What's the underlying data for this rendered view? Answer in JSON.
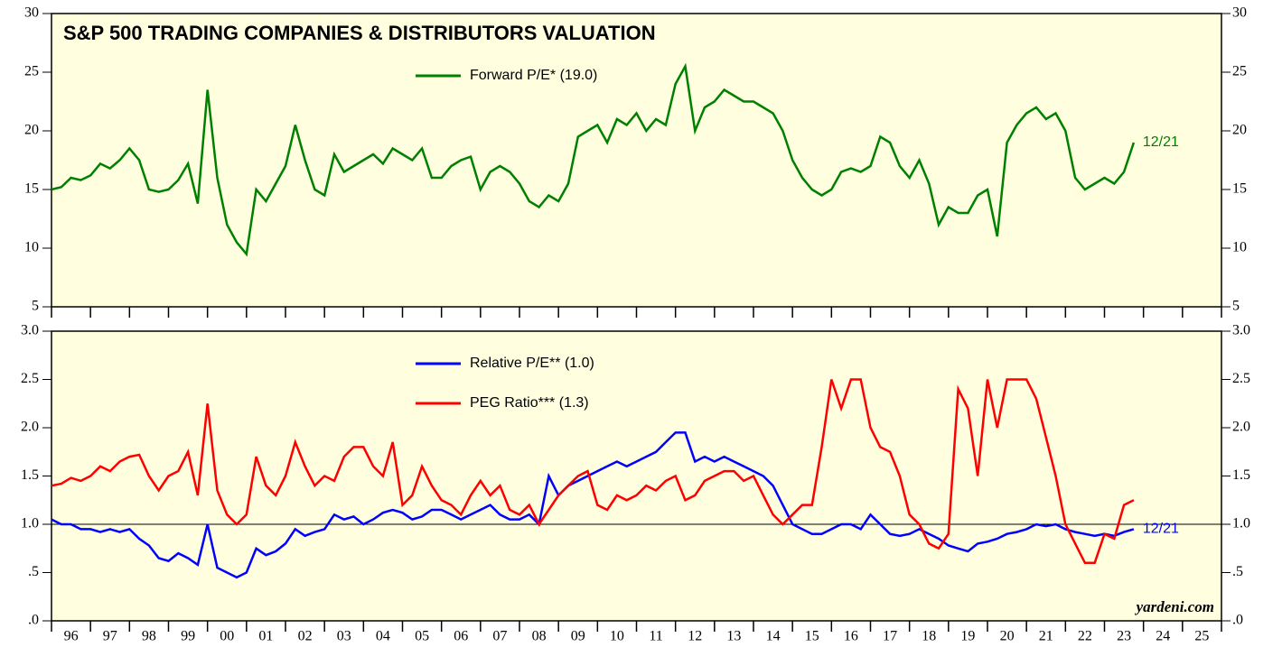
{
  "chart_data": [
    {
      "type": "line",
      "title": "S&P 500 TRADING COMPANIES & DISTRIBUTORS VALUATION",
      "x": [
        1996,
        1996.25,
        1996.5,
        1996.75,
        1997,
        1997.25,
        1997.5,
        1997.75,
        1998,
        1998.25,
        1998.5,
        1998.75,
        1999,
        1999.25,
        1999.5,
        1999.75,
        2000,
        2000.25,
        2000.5,
        2000.75,
        2001,
        2001.25,
        2001.5,
        2001.75,
        2002,
        2002.25,
        2002.5,
        2002.75,
        2003,
        2003.25,
        2003.5,
        2003.75,
        2004,
        2004.25,
        2004.5,
        2004.75,
        2005,
        2005.25,
        2005.5,
        2005.75,
        2006,
        2006.25,
        2006.5,
        2006.75,
        2007,
        2007.25,
        2007.5,
        2007.75,
        2008,
        2008.25,
        2008.5,
        2008.75,
        2009,
        2009.25,
        2009.5,
        2009.75,
        2010,
        2010.25,
        2010.5,
        2010.75,
        2011,
        2011.25,
        2011.5,
        2011.75,
        2012,
        2012.25,
        2012.5,
        2012.75,
        2013,
        2013.25,
        2013.5,
        2013.75,
        2014,
        2014.25,
        2014.5,
        2014.75,
        2015,
        2015.25,
        2015.5,
        2015.75,
        2016,
        2016.25,
        2016.5,
        2016.75,
        2017,
        2017.25,
        2017.5,
        2017.75,
        2018,
        2018.25,
        2018.5,
        2018.75,
        2019,
        2019.25,
        2019.5,
        2019.75,
        2020,
        2020.25,
        2020.5,
        2020.75,
        2021,
        2021.25,
        2021.5,
        2021.75,
        2022,
        2022.25,
        2022.5,
        2022.75,
        2023,
        2023.25,
        2023.5,
        2023.75
      ],
      "series": [
        {
          "name": "Forward P/E* (19.0)",
          "color": "#008000",
          "end_label": "12/21",
          "values": [
            15.0,
            15.2,
            16.0,
            15.8,
            16.2,
            17.2,
            16.8,
            17.5,
            18.5,
            17.5,
            15.0,
            14.8,
            15.0,
            15.8,
            17.2,
            13.8,
            23.5,
            16.0,
            12.0,
            10.5,
            9.5,
            15.0,
            14.0,
            15.5,
            17.0,
            20.5,
            17.5,
            15.0,
            14.5,
            18.0,
            16.5,
            17.0,
            17.5,
            18.0,
            17.2,
            18.5,
            18.0,
            17.5,
            18.5,
            16.0,
            16.0,
            17.0,
            17.5,
            17.8,
            15.0,
            16.5,
            17.0,
            16.5,
            15.5,
            14.0,
            13.5,
            14.5,
            14.0,
            15.5,
            19.5,
            20.0,
            20.5,
            19.0,
            21.0,
            20.5,
            21.5,
            20.0,
            21.0,
            20.5,
            24.0,
            25.5,
            20.0,
            22.0,
            22.5,
            23.5,
            23.0,
            22.5,
            22.5,
            22.0,
            21.5,
            20.0,
            17.5,
            16.0,
            15.0,
            14.5,
            15.0,
            16.5,
            16.8,
            16.5,
            17.0,
            19.5,
            19.0,
            17.0,
            16.0,
            17.5,
            15.5,
            12.0,
            13.5,
            13.0,
            13.0,
            14.5,
            15.0,
            11.0,
            19.0,
            20.5,
            21.5,
            22.0,
            21.0,
            21.5,
            20.0,
            16.0,
            15.0,
            15.5,
            16.0,
            15.5,
            16.5,
            19.0
          ]
        }
      ],
      "ylim": [
        5,
        30
      ],
      "yticks": [
        5,
        10,
        15,
        20,
        25,
        30
      ],
      "xlim": [
        1996,
        2026
      ],
      "xticks": [
        1996,
        1997,
        1998,
        1999,
        2000,
        2001,
        2002,
        2003,
        2004,
        2005,
        2006,
        2007,
        2008,
        2009,
        2010,
        2011,
        2012,
        2013,
        2014,
        2015,
        2016,
        2017,
        2018,
        2019,
        2020,
        2021,
        2022,
        2023,
        2024,
        2025,
        2026
      ]
    },
    {
      "type": "line",
      "x": [
        1996,
        1996.25,
        1996.5,
        1996.75,
        1997,
        1997.25,
        1997.5,
        1997.75,
        1998,
        1998.25,
        1998.5,
        1998.75,
        1999,
        1999.25,
        1999.5,
        1999.75,
        2000,
        2000.25,
        2000.5,
        2000.75,
        2001,
        2001.25,
        2001.5,
        2001.75,
        2002,
        2002.25,
        2002.5,
        2002.75,
        2003,
        2003.25,
        2003.5,
        2003.75,
        2004,
        2004.25,
        2004.5,
        2004.75,
        2005,
        2005.25,
        2005.5,
        2005.75,
        2006,
        2006.25,
        2006.5,
        2006.75,
        2007,
        2007.25,
        2007.5,
        2007.75,
        2008,
        2008.25,
        2008.5,
        2008.75,
        2009,
        2009.25,
        2009.5,
        2009.75,
        2010,
        2010.25,
        2010.5,
        2010.75,
        2011,
        2011.25,
        2011.5,
        2011.75,
        2012,
        2012.25,
        2012.5,
        2012.75,
        2013,
        2013.25,
        2013.5,
        2013.75,
        2014,
        2014.25,
        2014.5,
        2014.75,
        2015,
        2015.25,
        2015.5,
        2015.75,
        2016,
        2016.25,
        2016.5,
        2016.75,
        2017,
        2017.25,
        2017.5,
        2017.75,
        2018,
        2018.25,
        2018.5,
        2018.75,
        2019,
        2019.25,
        2019.5,
        2019.75,
        2020,
        2020.25,
        2020.5,
        2020.75,
        2021,
        2021.25,
        2021.5,
        2021.75,
        2022,
        2022.25,
        2022.5,
        2022.75,
        2023,
        2023.25,
        2023.5,
        2023.75
      ],
      "series": [
        {
          "name": "Relative P/E** (1.0)",
          "color": "#0000ff",
          "end_label": "12/21",
          "values": [
            1.05,
            1.0,
            1.0,
            0.95,
            0.95,
            0.92,
            0.95,
            0.92,
            0.95,
            0.85,
            0.78,
            0.65,
            0.62,
            0.7,
            0.65,
            0.58,
            1.0,
            0.55,
            0.5,
            0.45,
            0.5,
            0.75,
            0.68,
            0.72,
            0.8,
            0.95,
            0.88,
            0.92,
            0.95,
            1.1,
            1.05,
            1.08,
            1.0,
            1.05,
            1.12,
            1.15,
            1.12,
            1.05,
            1.08,
            1.15,
            1.15,
            1.1,
            1.05,
            1.1,
            1.15,
            1.2,
            1.1,
            1.05,
            1.05,
            1.1,
            1.0,
            1.5,
            1.3,
            1.4,
            1.45,
            1.5,
            1.55,
            1.6,
            1.65,
            1.6,
            1.65,
            1.7,
            1.75,
            1.85,
            1.95,
            1.95,
            1.65,
            1.7,
            1.65,
            1.7,
            1.65,
            1.6,
            1.55,
            1.5,
            1.4,
            1.2,
            1.0,
            0.95,
            0.9,
            0.9,
            0.95,
            1.0,
            1.0,
            0.95,
            1.1,
            1.0,
            0.9,
            0.88,
            0.9,
            0.95,
            0.9,
            0.85,
            0.78,
            0.75,
            0.72,
            0.8,
            0.82,
            0.85,
            0.9,
            0.92,
            0.95,
            1.0,
            0.98,
            1.0,
            0.95,
            0.92,
            0.9,
            0.88,
            0.9,
            0.88,
            0.92,
            0.95
          ]
        },
        {
          "name": "PEG Ratio*** (1.3)",
          "color": "#ff0000",
          "values": [
            1.4,
            1.42,
            1.48,
            1.45,
            1.5,
            1.6,
            1.55,
            1.65,
            1.7,
            1.72,
            1.5,
            1.35,
            1.5,
            1.55,
            1.75,
            1.3,
            2.25,
            1.35,
            1.1,
            1.0,
            1.1,
            1.7,
            1.4,
            1.3,
            1.5,
            1.85,
            1.6,
            1.4,
            1.5,
            1.45,
            1.7,
            1.8,
            1.8,
            1.6,
            1.5,
            1.85,
            1.2,
            1.3,
            1.6,
            1.4,
            1.25,
            1.2,
            1.1,
            1.3,
            1.45,
            1.3,
            1.4,
            1.15,
            1.1,
            1.2,
            1.0,
            1.15,
            1.3,
            1.4,
            1.5,
            1.55,
            1.2,
            1.15,
            1.3,
            1.25,
            1.3,
            1.4,
            1.35,
            1.45,
            1.5,
            1.25,
            1.3,
            1.45,
            1.5,
            1.55,
            1.55,
            1.45,
            1.5,
            1.3,
            1.1,
            1.0,
            1.1,
            1.2,
            1.2,
            1.8,
            2.5,
            2.2,
            2.5,
            2.5,
            2.0,
            1.8,
            1.75,
            1.5,
            1.1,
            1.0,
            0.8,
            0.75,
            0.9,
            2.4,
            2.2,
            1.5,
            2.5,
            2.0,
            2.5,
            2.5,
            2.5,
            2.3,
            1.9,
            1.5,
            1.0,
            0.8,
            0.6,
            0.6,
            0.9,
            0.85,
            1.2,
            1.25
          ]
        }
      ],
      "ylim": [
        0,
        3
      ],
      "yticks": [
        {
          "value": 0,
          "label": ".0"
        },
        {
          "value": 0.5,
          "label": ".5"
        },
        {
          "value": 1,
          "label": "1.0"
        },
        {
          "value": 1.5,
          "label": "1.5"
        },
        {
          "value": 2,
          "label": "2.0"
        },
        {
          "value": 2.5,
          "label": "2.5"
        },
        {
          "value": 3,
          "label": "3.0"
        }
      ],
      "hline": 1,
      "xlim": [
        1996,
        2026
      ],
      "xticks": [
        1996,
        1997,
        1998,
        1999,
        2000,
        2001,
        2002,
        2003,
        2004,
        2005,
        2006,
        2007,
        2008,
        2009,
        2010,
        2011,
        2012,
        2013,
        2014,
        2015,
        2016,
        2017,
        2018,
        2019,
        2020,
        2021,
        2022,
        2023,
        2024,
        2025,
        2026
      ],
      "xlabels": [
        {
          "value": 1996.5,
          "label": "96"
        },
        {
          "value": 1997.5,
          "label": "97"
        },
        {
          "value": 1998.5,
          "label": "98"
        },
        {
          "value": 1999.5,
          "label": "99"
        },
        {
          "value": 2000.5,
          "label": "00"
        },
        {
          "value": 2001.5,
          "label": "01"
        },
        {
          "value": 2002.5,
          "label": "02"
        },
        {
          "value": 2003.5,
          "label": "03"
        },
        {
          "value": 2004.5,
          "label": "04"
        },
        {
          "value": 2005.5,
          "label": "05"
        },
        {
          "value": 2006.5,
          "label": "06"
        },
        {
          "value": 2007.5,
          "label": "07"
        },
        {
          "value": 2008.5,
          "label": "08"
        },
        {
          "value": 2009.5,
          "label": "09"
        },
        {
          "value": 2010.5,
          "label": "10"
        },
        {
          "value": 2011.5,
          "label": "11"
        },
        {
          "value": 2012.5,
          "label": "12"
        },
        {
          "value": 2013.5,
          "label": "13"
        },
        {
          "value": 2014.5,
          "label": "14"
        },
        {
          "value": 2015.5,
          "label": "15"
        },
        {
          "value": 2016.5,
          "label": "16"
        },
        {
          "value": 2017.5,
          "label": "17"
        },
        {
          "value": 2018.5,
          "label": "18"
        },
        {
          "value": 2019.5,
          "label": "19"
        },
        {
          "value": 2020.5,
          "label": "20"
        },
        {
          "value": 2021.5,
          "label": "21"
        },
        {
          "value": 2022.5,
          "label": "22"
        },
        {
          "value": 2023.5,
          "label": "23"
        },
        {
          "value": 2024.5,
          "label": "24"
        },
        {
          "value": 2025.5,
          "label": "25"
        }
      ],
      "source": "yardeni.com"
    }
  ]
}
